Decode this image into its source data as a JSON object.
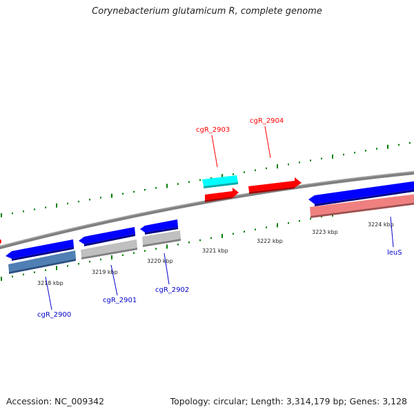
{
  "map": {
    "title": "Corynebacterium glutamicum R, complete genome",
    "accession": "Accession: NC_009342",
    "summary": "Topology: circular; Length: 3,314,179 bp; Genes: 3,128"
  },
  "axis": {
    "tick_labels": [
      "3218 kbp",
      "3219 kbp",
      "3220 kbp",
      "3221 kbp",
      "3222 kbp",
      "3223 kbp",
      "3224 kbp"
    ]
  },
  "genes": {
    "forward": [
      {
        "label": "cgR_2903",
        "color": "#ff0000"
      },
      {
        "label": "cgR_2904",
        "color": "#ff0000"
      }
    ],
    "reverse": [
      {
        "label": "cgR_2900",
        "color": "#0000cc"
      },
      {
        "label": "cgR_2901",
        "color": "#0000cc"
      },
      {
        "label": "cgR_2902",
        "color": "#0000cc"
      },
      {
        "label": "leuS",
        "color": "#0000cc"
      }
    ]
  },
  "colors": {
    "backbone": "#808080",
    "tick_marks": "#008000",
    "forward_cds": "#ff0000",
    "forward_feature": "#00ffff",
    "reverse_cds": "#0000ff",
    "reverse_feature_blue": "#4f7fb4",
    "reverse_feature_gray": "#c0c0c0",
    "reverse_feature_pink": "#f08080"
  }
}
